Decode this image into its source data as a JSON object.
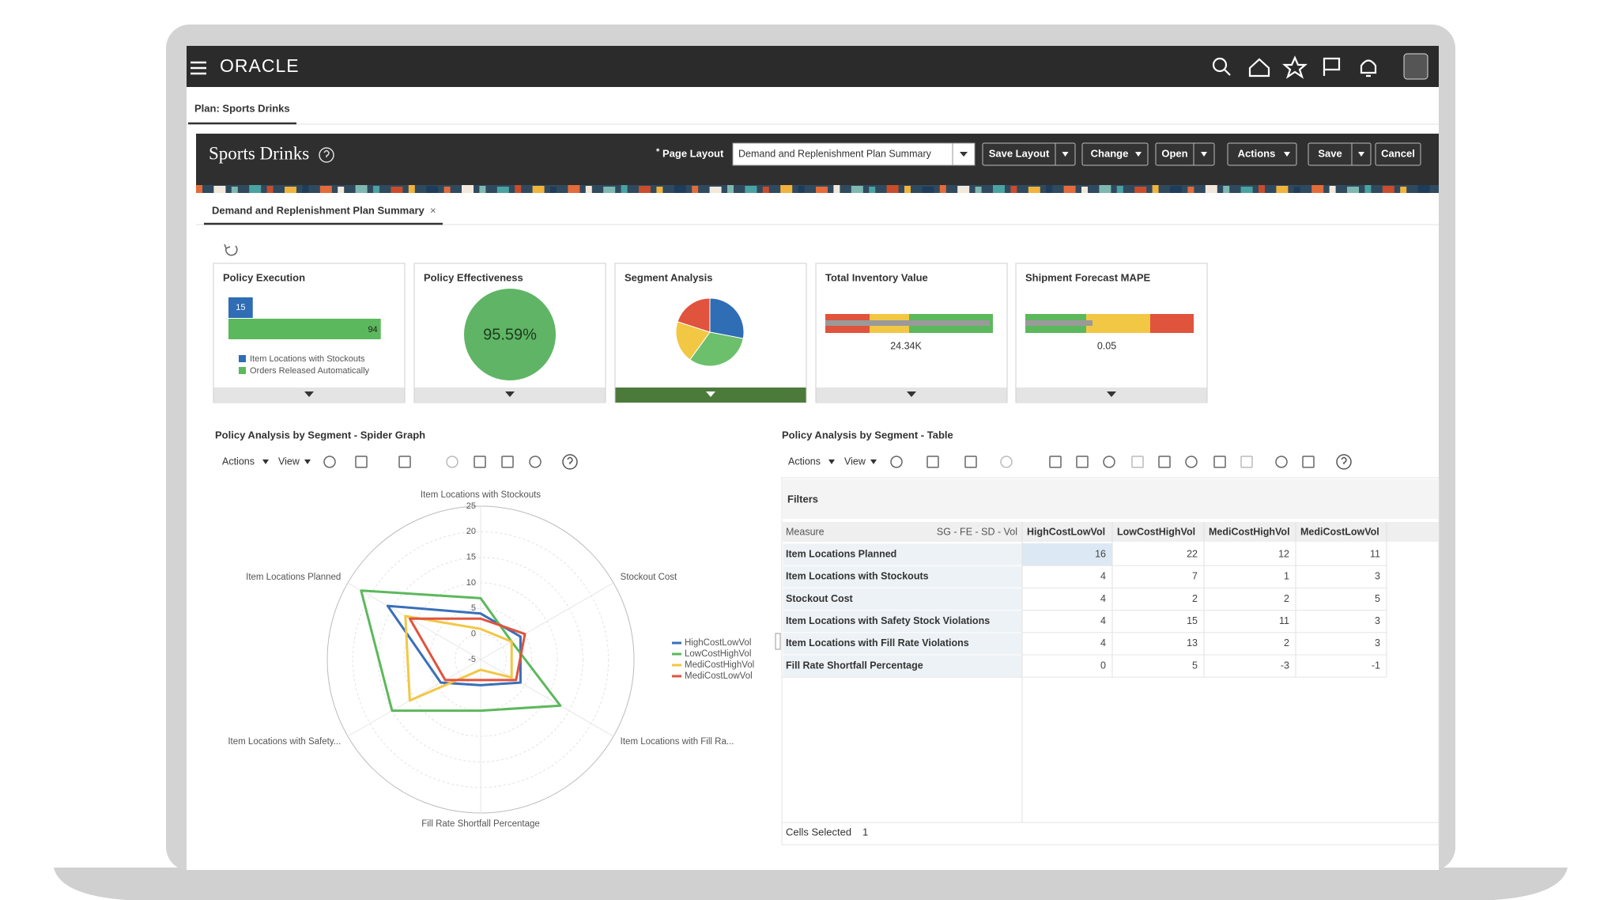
{
  "top_bar": {
    "brand": "ORACLE"
  },
  "breadcrumb": "Plan: Sports Drinks",
  "page_header": {
    "title": "Sports Drinks",
    "required_mark": "*",
    "layout_label": "Page Layout",
    "layout_value": "Demand and Replenishment Plan Summary",
    "buttons": [
      "Save Layout",
      "Change",
      "Open",
      "Actions",
      "Save",
      "Cancel"
    ]
  },
  "tab": {
    "label": "Demand and Replenishment Plan Summary",
    "close": "×"
  },
  "tiles": [
    {
      "title": "Policy Execution"
    },
    {
      "title": "Policy Effectiveness",
      "value": "95.59%"
    },
    {
      "title": "Segment Analysis"
    },
    {
      "title": "Total Inventory Value",
      "value": "24.34K"
    },
    {
      "title": "Shipment Forecast MAPE",
      "value": "0.05"
    }
  ],
  "sections": {
    "spider": "Policy Analysis by Segment - Spider Graph",
    "table": "Policy Analysis by Segment - Table"
  },
  "toolbar": {
    "actions": "Actions",
    "view": "View"
  },
  "chart_data": [
    {
      "type": "bar",
      "orientation": "horizontal",
      "xlim": [
        0,
        100
      ],
      "series": [
        {
          "name": "Item Locations with Stockouts",
          "color": "#2f6db5",
          "values": [
            15
          ]
        },
        {
          "name": "Orders Released Automatically",
          "color": "#5cb85c",
          "values": [
            94
          ]
        }
      ]
    },
    {
      "type": "pie",
      "categories": [
        null,
        null,
        null,
        null
      ],
      "values": [
        28,
        32,
        20,
        20
      ],
      "colors": [
        "#2f6db5",
        "#6cc06c",
        "#f2c744",
        "#e0533d"
      ]
    },
    {
      "type": "radar",
      "axes": [
        "Item Locations with Stockouts",
        "Stockout Cost",
        "Item Locations with Fill Ra...",
        "Fill Rate Shortfall Percentage",
        "Item Locations with Safety...",
        "Item Locations Planned"
      ],
      "rlim": [
        -5,
        25
      ],
      "rticks": [
        25,
        20,
        15,
        10,
        5,
        0,
        -5
      ],
      "series": [
        {
          "name": "HighCostLowVol",
          "color": "#3a6fb8",
          "values": [
            4,
            4,
            4,
            0,
            4,
            16
          ]
        },
        {
          "name": "LowCostHighVol",
          "color": "#5cb85c",
          "values": [
            7,
            2,
            13,
            5,
            15,
            22
          ]
        },
        {
          "name": "MediCostHighVol",
          "color": "#f2c744",
          "values": [
            1,
            2,
            2,
            -3,
            11,
            12
          ]
        },
        {
          "name": "MediCostLowVol",
          "color": "#e0533d",
          "values": [
            3,
            5,
            3,
            -1,
            3,
            11
          ]
        }
      ]
    }
  ],
  "table": {
    "filters": "Filters",
    "columns": [
      "Measure",
      "SG - FE - SD - Vol",
      "HighCostLowVol",
      "LowCostHighVol",
      "MediCostHighVol",
      "MediCostLowVol"
    ],
    "rows": [
      [
        "Item Locations Planned",
        16,
        22,
        12,
        11
      ],
      [
        "Item Locations with Stockouts",
        4,
        7,
        1,
        3
      ],
      [
        "Stockout Cost",
        4,
        2,
        2,
        5
      ],
      [
        "Item Locations with Safety Stock Violations",
        4,
        15,
        11,
        3
      ],
      [
        "Item Locations with Fill Rate Violations",
        4,
        13,
        2,
        3
      ],
      [
        "Fill Rate Shortfall Percentage",
        0,
        5,
        -3,
        -1
      ]
    ],
    "status_label": "Cells Selected",
    "status_value": 1
  }
}
